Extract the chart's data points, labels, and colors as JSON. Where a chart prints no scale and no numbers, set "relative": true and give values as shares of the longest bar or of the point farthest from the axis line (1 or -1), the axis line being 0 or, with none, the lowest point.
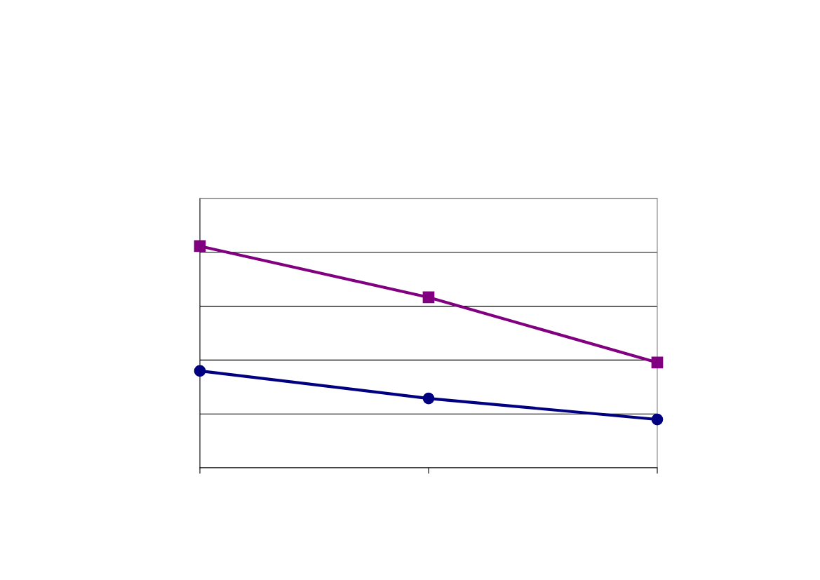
{
  "chart_data": {
    "type": "line",
    "relative": true,
    "categories": [
      null,
      null,
      null
    ],
    "series": [
      {
        "color": "#800080",
        "marker": "square",
        "values": [
          1,
          0.769,
          0.475
        ]
      },
      {
        "color": "#000080",
        "marker": "circle",
        "values": [
          0.437,
          0.313,
          0.218
        ]
      }
    ],
    "grid": "y",
    "line_style": "solid"
  }
}
